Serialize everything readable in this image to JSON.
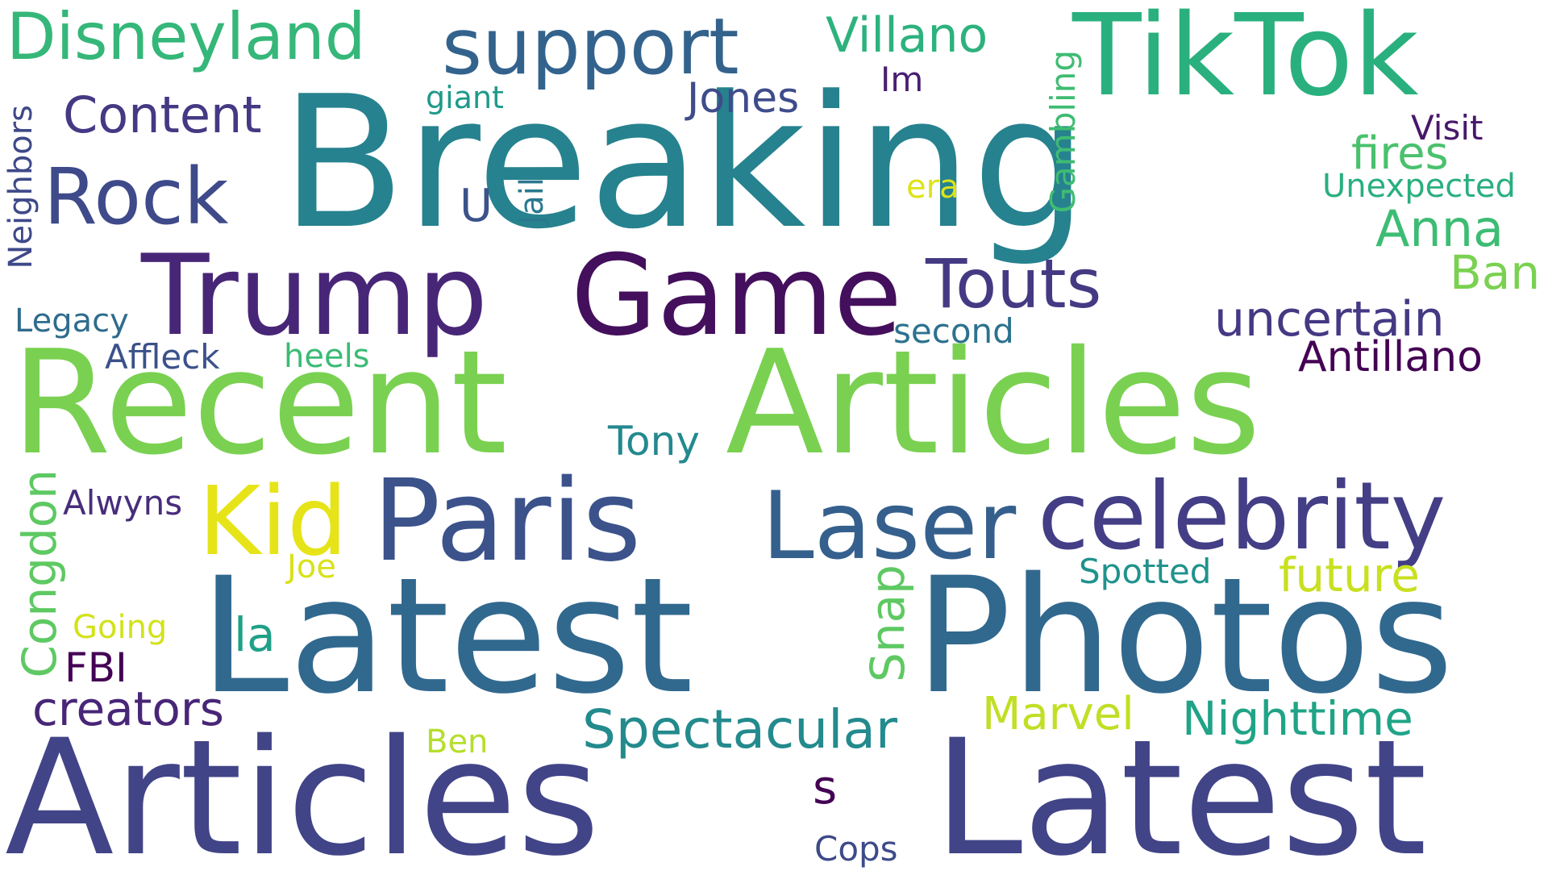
{
  "palette": {
    "background": "#ffffff",
    "teal": "#26828e",
    "green": "#7ad151",
    "navy": "#414487",
    "purple": "#440154",
    "yellow": "#e5e419",
    "blue": "#31688e",
    "seagreen": "#22a884"
  },
  "words": [
    {
      "text": "Breaking",
      "color": "#26828e"
    },
    {
      "text": "Recent",
      "color": "#7ad151"
    },
    {
      "text": "Articles",
      "color": "#7ad151"
    },
    {
      "text": "Articles",
      "color": "#414487"
    },
    {
      "text": "Latest",
      "color": "#414487"
    },
    {
      "text": "Latest",
      "color": "#31688e"
    },
    {
      "text": "Photos",
      "color": "#31688e"
    },
    {
      "text": "TikTok",
      "color": "#2ab07f"
    },
    {
      "text": "Trump",
      "color": "#482677"
    },
    {
      "text": "Game",
      "color": "#440f5c"
    },
    {
      "text": "Paris",
      "color": "#3b528b"
    },
    {
      "text": "Laser",
      "color": "#35608d"
    },
    {
      "text": "celebrity",
      "color": "#433e85"
    },
    {
      "text": "Kid",
      "color": "#e6e418"
    },
    {
      "text": "support",
      "color": "#33638d"
    },
    {
      "text": "Disneyland",
      "color": "#35b779"
    },
    {
      "text": "Rock",
      "color": "#3e4a89"
    },
    {
      "text": "Touts",
      "color": "#443a83"
    },
    {
      "text": "Content",
      "color": "#443983"
    },
    {
      "text": "Villano",
      "color": "#2db27d"
    },
    {
      "text": "Jones",
      "color": "#3e4c8a"
    },
    {
      "text": "giant",
      "color": "#1f9a8a"
    },
    {
      "text": "Im",
      "color": "#481f70"
    },
    {
      "text": "U",
      "color": "#3b528b"
    },
    {
      "text": "Jail",
      "color": "#29798e"
    },
    {
      "text": "Gambling",
      "color": "#3fbc73"
    },
    {
      "text": "era",
      "color": "#dde318"
    },
    {
      "text": "Visit",
      "color": "#48186a"
    },
    {
      "text": "fires",
      "color": "#4ac16d"
    },
    {
      "text": "Unexpected",
      "color": "#29af7f"
    },
    {
      "text": "Anna",
      "color": "#3dbc74"
    },
    {
      "text": "Ban",
      "color": "#7ad151"
    },
    {
      "text": "uncertain",
      "color": "#443983"
    },
    {
      "text": "Antillano",
      "color": "#440154"
    },
    {
      "text": "second",
      "color": "#2c728e"
    },
    {
      "text": "Neighbors",
      "color": "#3e4989"
    },
    {
      "text": "Legacy",
      "color": "#2f6c8e"
    },
    {
      "text": "Affleck",
      "color": "#3b518b"
    },
    {
      "text": "heels",
      "color": "#3bbb75"
    },
    {
      "text": "Tony",
      "color": "#23898e"
    },
    {
      "text": "Alwyns",
      "color": "#472d7b"
    },
    {
      "text": "Congdon",
      "color": "#5ec962"
    },
    {
      "text": "Joe",
      "color": "#d8e219"
    },
    {
      "text": "Going",
      "color": "#d2e21b"
    },
    {
      "text": "la",
      "color": "#1fa088"
    },
    {
      "text": "FBI",
      "color": "#440154"
    },
    {
      "text": "Snap",
      "color": "#5ec962"
    },
    {
      "text": "Spotted",
      "color": "#20928c"
    },
    {
      "text": "future",
      "color": "#c8e020"
    },
    {
      "text": "creators",
      "color": "#482677"
    },
    {
      "text": "Spectacular",
      "color": "#238a8d"
    },
    {
      "text": "Marvel",
      "color": "#c0df25"
    },
    {
      "text": "Nighttime",
      "color": "#20a386"
    },
    {
      "text": "Ben",
      "color": "#b5de2b"
    },
    {
      "text": "s",
      "color": "#440154"
    },
    {
      "text": "Cops",
      "color": "#3e4a89"
    }
  ]
}
